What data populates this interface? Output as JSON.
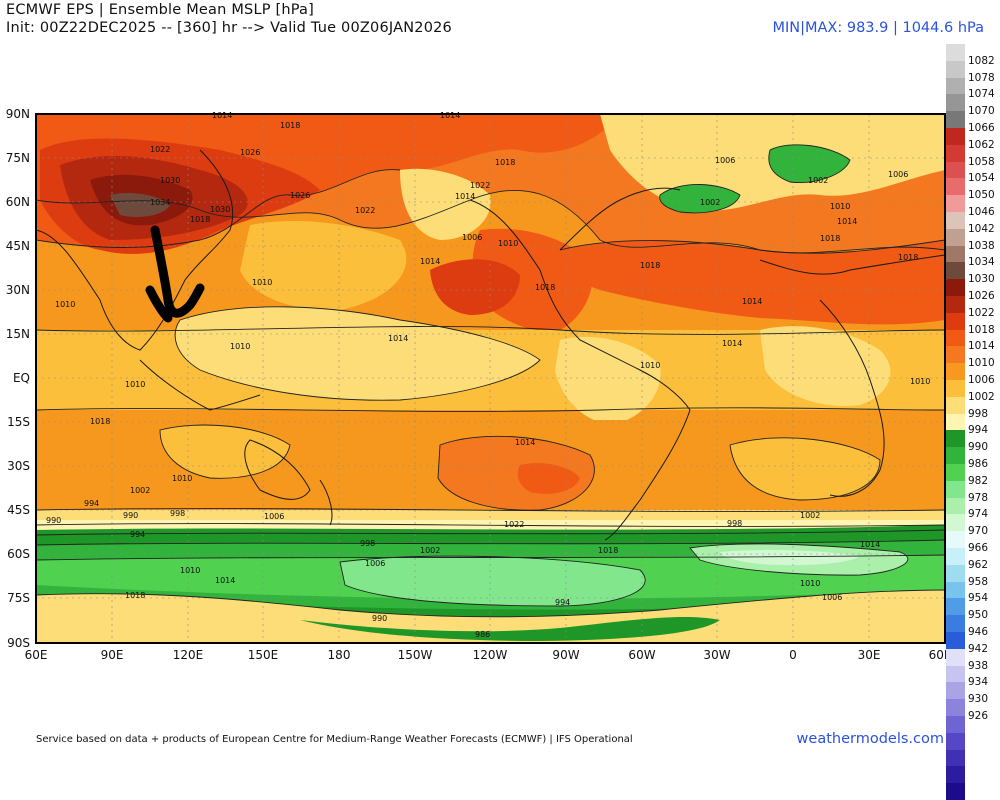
{
  "header": {
    "title": "ECMWF EPS | Ensemble Mean MSLP [hPa]",
    "init_line": "Init: 00Z22DEC2025 -- [360] hr --> Valid Tue 00Z06JAN2026",
    "minmax": "MIN|MAX: 983.9 | 1044.6 hPa"
  },
  "axes": {
    "lat_labels": [
      "90N",
      "75N",
      "60N",
      "45N",
      "30N",
      "15N",
      "EQ",
      "15S",
      "30S",
      "45S",
      "60S",
      "75S",
      "90S"
    ],
    "lon_labels": [
      "60E",
      "90E",
      "120E",
      "150E",
      "180",
      "150W",
      "120W",
      "90W",
      "60W",
      "30W",
      "0",
      "30E",
      "60E"
    ]
  },
  "colorbar": {
    "levels": [
      "1082",
      "1078",
      "1074",
      "1070",
      "1066",
      "1062",
      "1058",
      "1054",
      "1050",
      "1046",
      "1042",
      "1038",
      "1034",
      "1030",
      "1026",
      "1022",
      "1018",
      "1014",
      "1010",
      "1006",
      "1002",
      "998",
      "994",
      "990",
      "986",
      "982",
      "978",
      "974",
      "970",
      "966",
      "962",
      "958",
      "954",
      "950",
      "946",
      "942",
      "938",
      "934",
      "930",
      "926"
    ],
    "colors": [
      "#dcdcdc",
      "#c8c8c8",
      "#b0b0b0",
      "#969696",
      "#787878",
      "#c0281e",
      "#d23a32",
      "#dc5050",
      "#e86c6c",
      "#f09a9a",
      "#dcc4b8",
      "#c0a090",
      "#a07868",
      "#6e4a3c",
      "#8c1a0c",
      "#b42810",
      "#dc3c10",
      "#f05a14",
      "#f47820",
      "#f79820",
      "#fbbf3c",
      "#fddd78",
      "#fff4b0",
      "#1e9628",
      "#32b43c",
      "#50d250",
      "#82e68c",
      "#aaf0aa",
      "#d2f8d2",
      "#e6fafa",
      "#c8f0f8",
      "#a0dcf0",
      "#78c4ec",
      "#509ce6",
      "#3c7ce0",
      "#285cd8",
      "#e2e0f8",
      "#c8c4f0",
      "#aaa4e6",
      "#8c84dc",
      "#6e64d2",
      "#5648c4",
      "#4030b4",
      "#2c1ca0",
      "#1c0c8c"
    ]
  },
  "map": {
    "contour_labels": [
      "1014",
      "1018",
      "1014",
      "1010",
      "1010",
      "1022",
      "1026",
      "1030",
      "1034",
      "1030",
      "1026",
      "1018",
      "1022",
      "1022",
      "1018",
      "1014",
      "1006",
      "1010",
      "1014",
      "1018",
      "1018",
      "1014",
      "1010",
      "1006",
      "1002",
      "1002",
      "1006",
      "1010",
      "1014",
      "1018",
      "1018",
      "1014",
      "1010",
      "1010",
      "1010",
      "1014",
      "1018",
      "1014",
      "1010",
      "1006",
      "1002",
      "998",
      "994",
      "990",
      "990",
      "994",
      "998",
      "1002",
      "1006",
      "1010",
      "1014",
      "1018",
      "1022",
      "1018",
      "1014",
      "1010",
      "1006",
      "1002",
      "998",
      "994",
      "990",
      "986",
      "1002",
      "1006"
    ],
    "legend_note": ""
  },
  "footer": {
    "source": "Service based on data + products of European Centre for Medium-Range Weather Forecasts (ECMWF) | IFS Operational",
    "brand": "weathermodels.com"
  }
}
